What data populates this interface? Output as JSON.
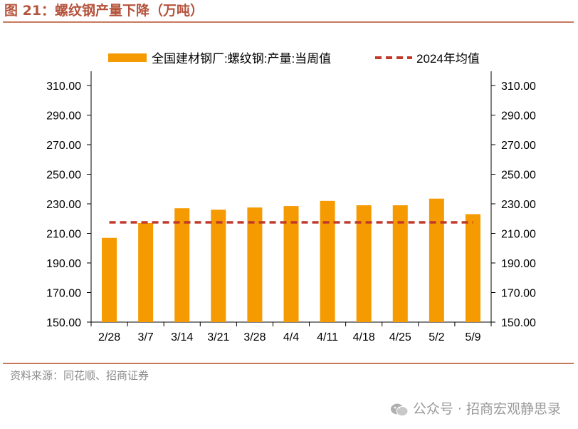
{
  "figure": {
    "title": "图 21：螺纹钢产量下降（万吨）",
    "source": "资料来源：同花顺、招商证券",
    "watermark": "公众号 · 招商宏观静思录"
  },
  "colors": {
    "bar": "#f59a00",
    "avg_line": "#c0392b",
    "title": "#b5533c",
    "rule": "#c8795d"
  },
  "chart_data": {
    "type": "bar",
    "categories": [
      "2/28",
      "3/7",
      "3/14",
      "3/21",
      "3/28",
      "4/4",
      "4/11",
      "4/18",
      "4/25",
      "5/2",
      "5/9"
    ],
    "series": [
      {
        "name": "全国建材钢厂:螺纹钢:产量:当周值",
        "type": "bar",
        "values": [
          207,
          217,
          227,
          226,
          227.5,
          228.5,
          232,
          229,
          229,
          233.5,
          223
        ]
      },
      {
        "name": "2024年均值",
        "type": "line",
        "style": "dashed",
        "values": [
          217.5,
          217.5,
          217.5,
          217.5,
          217.5,
          217.5,
          217.5,
          217.5,
          217.5,
          217.5,
          217.5
        ]
      }
    ],
    "ylim": [
      150,
      310
    ],
    "yticks": [
      "150.00",
      "170.00",
      "190.00",
      "210.00",
      "230.00",
      "250.00",
      "270.00",
      "290.00",
      "310.00"
    ],
    "y2ticks": [
      "150.00",
      "170.00",
      "190.00",
      "210.00",
      "230.00",
      "250.00",
      "270.00",
      "290.00",
      "310.00"
    ],
    "legend": "top",
    "grid": false
  }
}
